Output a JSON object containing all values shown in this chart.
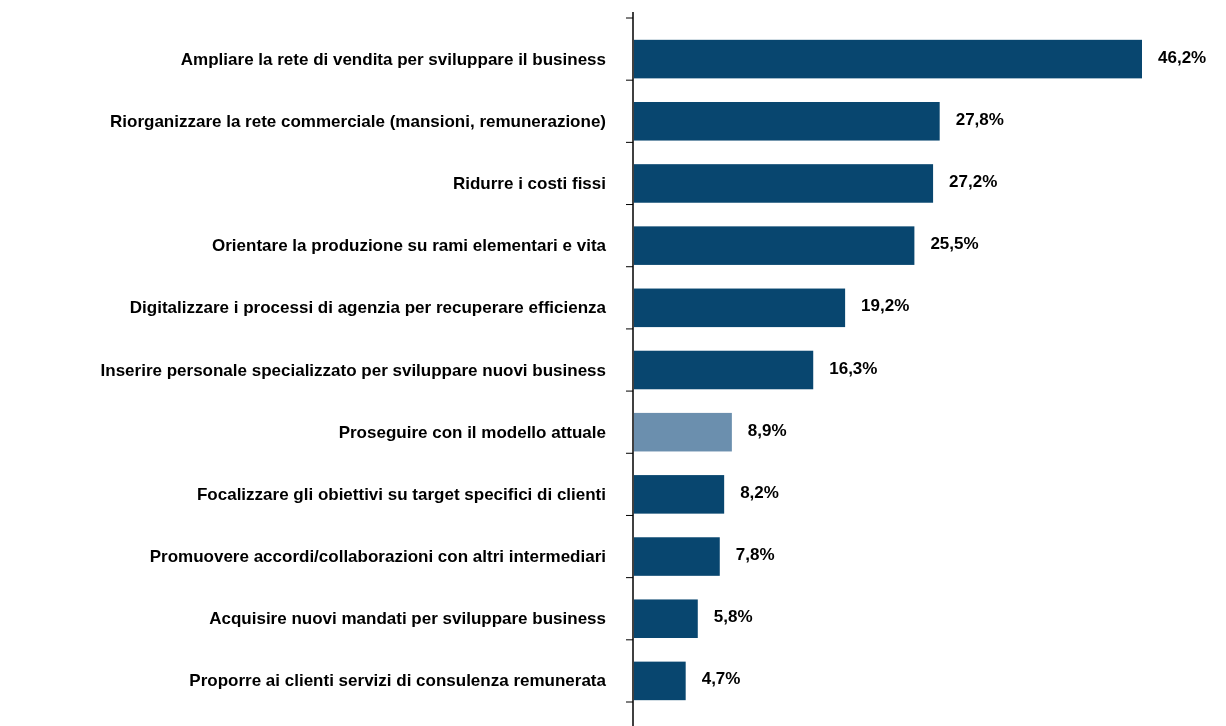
{
  "chart_data": {
    "type": "bar",
    "orientation": "horizontal",
    "categories": [
      "Ampliare la rete di vendita per sviluppare il business",
      "Riorganizzare la rete commerciale (mansioni, remunerazione)",
      "Ridurre i costi fissi",
      "Orientare la produzione su rami elementari e vita",
      "Digitalizzare i processi di agenzia per recuperare efficienza",
      "Inserire personale specializzato per sviluppare nuovi business",
      "Proseguire con il modello attuale",
      "Focalizzare gli obiettivi su target specifici di clienti",
      "Promuovere accordi/collaborazioni con altri intermediari",
      "Acquisire nuovi mandati per sviluppare business",
      "Proporre ai clienti servizi di consulenza remunerata"
    ],
    "values": [
      46.2,
      27.8,
      27.2,
      25.5,
      19.2,
      16.3,
      8.9,
      8.2,
      7.8,
      5.8,
      4.7
    ],
    "value_labels": [
      "46,2%",
      "27,8%",
      "27,2%",
      "25,5%",
      "19,2%",
      "16,3%",
      "8,9%",
      "8,2%",
      "7,8%",
      "5,8%",
      "4,7%"
    ],
    "colors": [
      "#08466f",
      "#08466f",
      "#08466f",
      "#08466f",
      "#08466f",
      "#08466f",
      "#6b8fae",
      "#08466f",
      "#08466f",
      "#08466f",
      "#08466f"
    ]
  }
}
